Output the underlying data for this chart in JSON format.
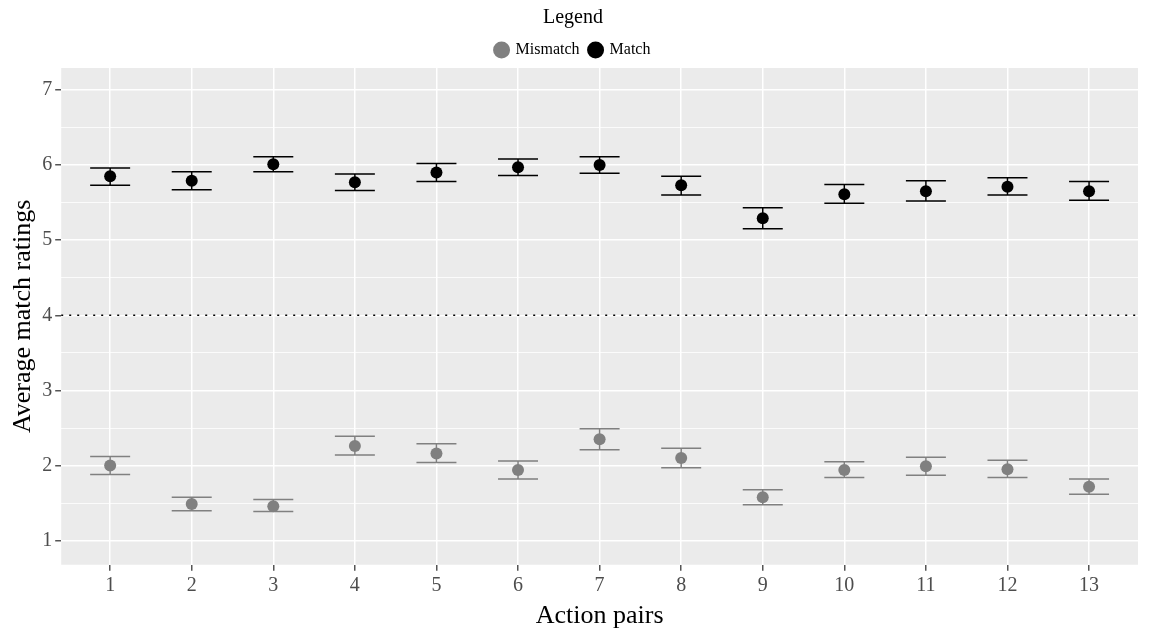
{
  "chart_data": {
    "type": "scatter",
    "xlabel": "Action pairs",
    "ylabel": "Average match ratings",
    "legend_title": "Legend",
    "legend": "top",
    "grid": true,
    "marker": "circle",
    "x": [
      1,
      2,
      3,
      4,
      5,
      6,
      7,
      8,
      9,
      10,
      11,
      12,
      13
    ],
    "xlim": [
      0.4,
      13.6
    ],
    "xticks": [
      1,
      2,
      3,
      4,
      5,
      6,
      7,
      8,
      9,
      10,
      11,
      12,
      13
    ],
    "ylim": [
      0.68,
      7.29
    ],
    "yticks": [
      1,
      {
        "value": 1.5,
        "label": null
      },
      2,
      {
        "value": 2.5,
        "label": null
      },
      3,
      {
        "value": 3.5,
        "label": null
      },
      4,
      {
        "value": 4.5,
        "label": null
      },
      5,
      {
        "value": 5.5,
        "label": null
      },
      6,
      {
        "value": 6.5,
        "label": null
      },
      7
    ],
    "ref_lines": [
      {
        "axis": "y",
        "value": 4,
        "color": "#000000",
        "line_style": "dotted"
      }
    ],
    "series": [
      {
        "name": "Mismatch",
        "color": "#808080",
        "values": [
          2.0,
          1.49,
          1.46,
          2.26,
          2.16,
          1.94,
          2.35,
          2.1,
          1.58,
          1.94,
          1.99,
          1.95,
          1.72
        ],
        "errors": [
          [
            1.88,
            2.12
          ],
          [
            1.4,
            1.58
          ],
          [
            1.39,
            1.55
          ],
          [
            2.14,
            2.39
          ],
          [
            2.04,
            2.29
          ],
          [
            1.82,
            2.06
          ],
          [
            2.21,
            2.49
          ],
          [
            1.97,
            2.23
          ],
          [
            1.48,
            1.68
          ],
          [
            1.84,
            2.05
          ],
          [
            1.87,
            2.11
          ],
          [
            1.84,
            2.07
          ],
          [
            1.62,
            1.82
          ]
        ]
      },
      {
        "name": "Match",
        "color": "#000000",
        "values": [
          5.85,
          5.79,
          6.01,
          5.77,
          5.9,
          5.97,
          6.0,
          5.73,
          5.29,
          5.61,
          5.65,
          5.71,
          5.65
        ],
        "errors": [
          [
            5.73,
            5.96
          ],
          [
            5.67,
            5.91
          ],
          [
            5.91,
            6.11
          ],
          [
            5.66,
            5.88
          ],
          [
            5.78,
            6.02
          ],
          [
            5.86,
            6.08
          ],
          [
            5.89,
            6.11
          ],
          [
            5.6,
            5.85
          ],
          [
            5.15,
            5.43
          ],
          [
            5.49,
            5.74
          ],
          [
            5.52,
            5.79
          ],
          [
            5.6,
            5.83
          ],
          [
            5.53,
            5.78
          ]
        ]
      }
    ]
  }
}
